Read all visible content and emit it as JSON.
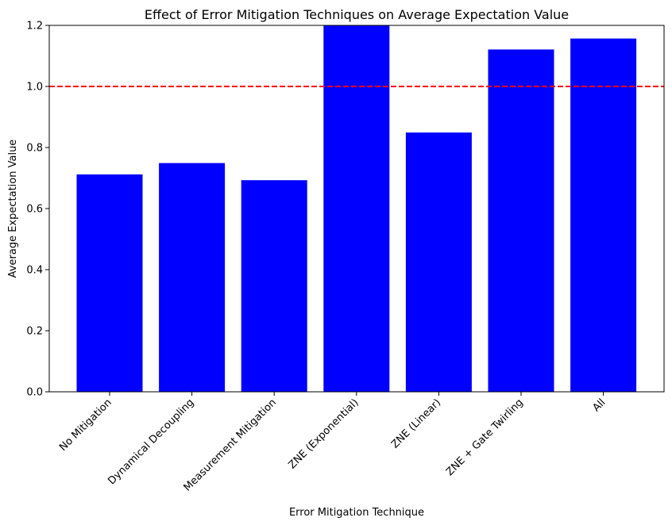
{
  "chart_data": {
    "type": "bar",
    "title": "Effect of Error Mitigation Techniques on Average Expectation Value",
    "xlabel": "Error Mitigation Technique",
    "ylabel": "Average Expectation Value",
    "categories": [
      "No Mitigation",
      "Dynamical Decoupling",
      "Measurement Mitigation",
      "ZNE (Exponential)",
      "ZNE (Linear)",
      "ZNE + Gate Twirling",
      "All"
    ],
    "values": [
      0.712,
      0.749,
      0.693,
      1.25,
      0.849,
      1.121,
      1.157
    ],
    "ylim": [
      0,
      1.2
    ],
    "yticks": [
      "0.0",
      "0.2",
      "0.4",
      "0.6",
      "0.8",
      "1.0",
      "1.2"
    ],
    "bar_color": "#0000ff",
    "reference_line": {
      "y": 1.0,
      "color": "#ff0000",
      "style": "dashed"
    },
    "grid": false,
    "legend": "none"
  }
}
